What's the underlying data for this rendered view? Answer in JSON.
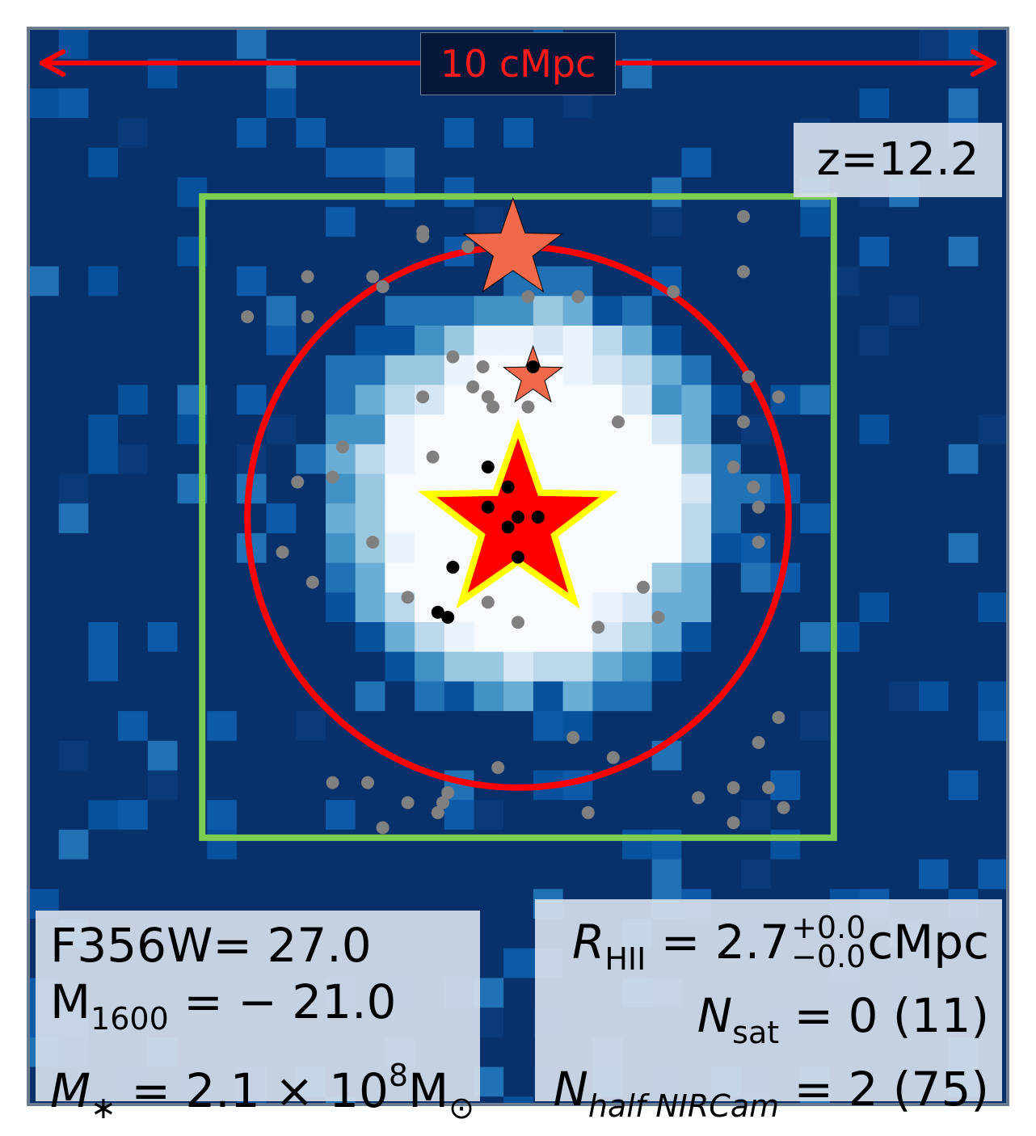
{
  "chart_data": {
    "type": "scatter",
    "title": "",
    "scale_bar": "10 cMpc",
    "redshift": "z=12.2",
    "photometry": {
      "flux_label": "F356W",
      "flux_value": "= 27.0",
      "muv_label": "M",
      "muv_sub": "1600",
      "muv_value": " = − 21.0",
      "mstar_label": "M",
      "mstar_sub": "∗",
      "mstar_value": " = 2.1 × 10",
      "mstar_exp": "8",
      "mstar_unit": "M",
      "mstar_unit_sub": "⊙"
    },
    "hii_region": {
      "r_label": "R",
      "r_sub": "HII",
      "r_value": " = 2.7",
      "r_err_plus": "+0.0",
      "r_err_minus": "−0.0",
      "r_unit": "cMpc",
      "nsat_label": "N",
      "nsat_sub": "sat",
      "nsat_value": " = 0 (11)",
      "nhalf_label": "N",
      "nhalf_sub": "half NIRCam",
      "nhalf_value": " = 2 (75)"
    },
    "colors": {
      "background": "#08306b",
      "ionized": "#f7fbff",
      "hii_circle": "#ff0000",
      "nircam_box": "#7ccd52",
      "central_star": "#ff0000",
      "central_star_edge": "#ffff00",
      "neighbor_star": "#f0694a",
      "galaxies_faint": "#808080",
      "galaxies_bright": "#000000"
    },
    "units": "cMpc",
    "extent": [
      -5,
      5
    ],
    "hii_radius": 2.7,
    "nircam_half_width": 3.2,
    "central_source": {
      "x": 0.0,
      "y": 0.0
    },
    "neighbor_sources": [
      {
        "x": -0.05,
        "y": 2.7,
        "size": "large"
      },
      {
        "x": 0.15,
        "y": 1.4,
        "size": "small"
      }
    ],
    "galaxies_bright": [
      [
        -0.3,
        0.5
      ],
      [
        -0.1,
        0.3
      ],
      [
        -0.3,
        0.1
      ],
      [
        0.0,
        0.0
      ],
      [
        0.2,
        0.0
      ],
      [
        -0.1,
        -0.1
      ],
      [
        0.0,
        -0.4
      ],
      [
        -0.65,
        -0.5
      ],
      [
        -0.8,
        -0.95
      ],
      [
        -0.7,
        -1.0
      ],
      [
        0.15,
        1.5
      ]
    ],
    "galaxies_faint": [
      [
        -2.7,
        2.0
      ],
      [
        -2.1,
        2.4
      ],
      [
        -1.45,
        2.4
      ],
      [
        -1.35,
        2.3
      ],
      [
        -0.95,
        2.8
      ],
      [
        -0.95,
        2.85
      ],
      [
        -0.5,
        2.7
      ],
      [
        -0.2,
        2.45
      ],
      [
        0.0,
        2.6
      ],
      [
        0.1,
        2.2
      ],
      [
        0.6,
        2.2
      ],
      [
        1.55,
        2.25
      ],
      [
        2.25,
        3.0
      ],
      [
        2.25,
        2.45
      ],
      [
        -2.1,
        2.0
      ],
      [
        -0.65,
        1.6
      ],
      [
        -0.35,
        1.5
      ],
      [
        -0.45,
        1.3
      ],
      [
        -0.3,
        1.2
      ],
      [
        -0.25,
        1.1
      ],
      [
        -0.95,
        1.2
      ],
      [
        0.1,
        1.1
      ],
      [
        1.0,
        0.95
      ],
      [
        -0.85,
        0.6
      ],
      [
        -1.75,
        0.7
      ],
      [
        -1.85,
        0.4
      ],
      [
        -2.2,
        0.35
      ],
      [
        2.3,
        1.4
      ],
      [
        2.6,
        1.2
      ],
      [
        2.25,
        0.95
      ],
      [
        2.15,
        0.5
      ],
      [
        2.35,
        0.3
      ],
      [
        2.4,
        0.1
      ],
      [
        2.4,
        -0.25
      ],
      [
        -1.45,
        -0.25
      ],
      [
        -2.35,
        -0.35
      ],
      [
        -2.05,
        -0.65
      ],
      [
        -0.25,
        -0.35
      ],
      [
        -1.1,
        -0.8
      ],
      [
        -0.3,
        -0.85
      ],
      [
        -0.0,
        -1.05
      ],
      [
        0.8,
        -1.1
      ],
      [
        1.25,
        -0.7
      ],
      [
        1.4,
        -1.0
      ],
      [
        2.6,
        -2.0
      ],
      [
        2.4,
        -2.25
      ],
      [
        0.55,
        -2.2
      ],
      [
        0.95,
        -2.4
      ],
      [
        -0.2,
        -2.5
      ],
      [
        -1.85,
        -2.65
      ],
      [
        -1.5,
        -2.65
      ],
      [
        -1.1,
        -2.85
      ],
      [
        -0.7,
        -2.75
      ],
      [
        -0.75,
        -2.85
      ],
      [
        -0.8,
        -2.95
      ],
      [
        -1.35,
        -3.1
      ],
      [
        0.7,
        -2.95
      ],
      [
        1.8,
        -2.8
      ],
      [
        2.15,
        -2.7
      ],
      [
        2.5,
        -2.7
      ],
      [
        2.65,
        -2.9
      ],
      [
        2.15,
        -3.05
      ]
    ]
  }
}
